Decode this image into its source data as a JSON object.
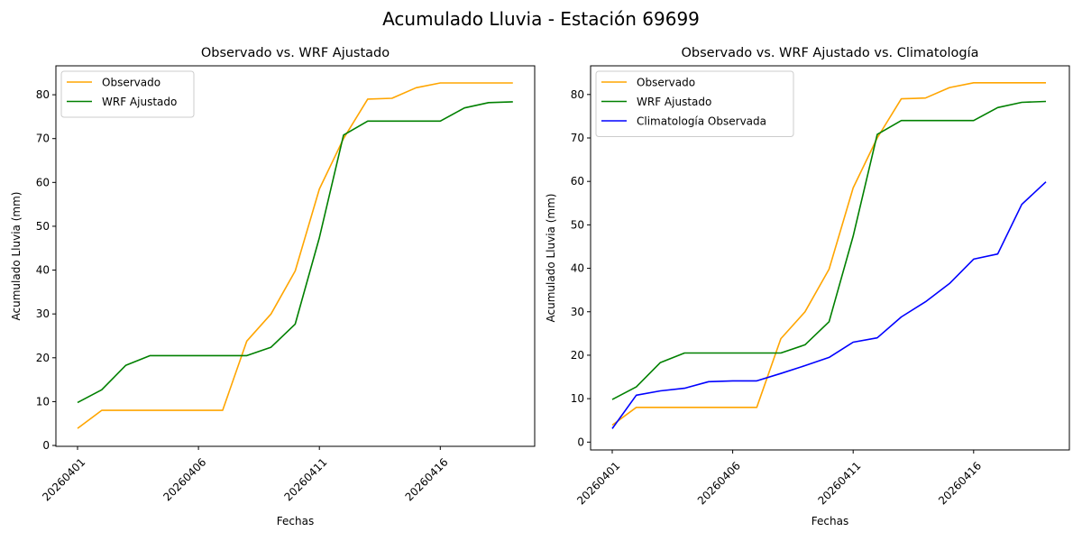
{
  "figure_title": "Acumulado Lluvia - Estación 69699",
  "colors": {
    "observado": "#ffa500",
    "wrf": "#008000",
    "climatologia": "#0000ff"
  },
  "chart_data": [
    {
      "type": "line",
      "title": "Observado vs. WRF Ajustado",
      "xlabel": "Fechas",
      "ylabel": "Acumulado Lluvia (mm)",
      "x": [
        "20260401",
        "20260402",
        "20260403",
        "20260404",
        "20260405",
        "20260406",
        "20260407",
        "20260408",
        "20260409",
        "20260410",
        "20260411",
        "20260412",
        "20260413",
        "20260414",
        "20260415",
        "20260416",
        "20260417",
        "20260418",
        "20260419"
      ],
      "xticks": [
        "20260401",
        "20260406",
        "20260411",
        "20260416"
      ],
      "yticks": [
        0,
        10,
        20,
        30,
        40,
        50,
        60,
        70,
        80
      ],
      "ylim": [
        -0.2,
        86.6
      ],
      "legend": "top-left",
      "grid": false,
      "series": [
        {
          "name": "Observado",
          "color": "#ffa500",
          "values": [
            3.9,
            8.0,
            8.0,
            8.0,
            8.0,
            8.0,
            8.0,
            23.8,
            30.0,
            39.8,
            58.5,
            70.0,
            79.0,
            79.2,
            81.6,
            82.7,
            82.7,
            82.7,
            82.7
          ]
        },
        {
          "name": "WRF Ajustado",
          "color": "#008000",
          "values": [
            9.8,
            12.7,
            18.3,
            20.5,
            20.5,
            20.5,
            20.5,
            20.5,
            22.4,
            27.7,
            47.4,
            70.8,
            74.0,
            74.0,
            74.0,
            74.0,
            77.0,
            78.2,
            78.4
          ]
        }
      ]
    },
    {
      "type": "line",
      "title": "Observado vs. WRF Ajustado vs. Climatología",
      "xlabel": "Fechas",
      "ylabel": "Acumulado Lluvia (mm)",
      "x": [
        "20260401",
        "20260402",
        "20260403",
        "20260404",
        "20260405",
        "20260406",
        "20260407",
        "20260408",
        "20260409",
        "20260410",
        "20260411",
        "20260412",
        "20260413",
        "20260414",
        "20260415",
        "20260416",
        "20260417",
        "20260418",
        "20260419"
      ],
      "xticks": [
        "20260401",
        "20260406",
        "20260411",
        "20260416"
      ],
      "yticks": [
        0,
        10,
        20,
        30,
        40,
        50,
        60,
        70,
        80
      ],
      "ylim": [
        -1.8,
        86.6
      ],
      "legend": "top-left",
      "grid": false,
      "series": [
        {
          "name": "Observado",
          "color": "#ffa500",
          "values": [
            3.9,
            8.0,
            8.0,
            8.0,
            8.0,
            8.0,
            8.0,
            23.8,
            30.0,
            39.8,
            58.5,
            70.0,
            79.0,
            79.2,
            81.6,
            82.7,
            82.7,
            82.7,
            82.7
          ]
        },
        {
          "name": "WRF Ajustado",
          "color": "#008000",
          "values": [
            9.8,
            12.7,
            18.3,
            20.5,
            20.5,
            20.5,
            20.5,
            20.5,
            22.4,
            27.7,
            47.4,
            70.8,
            74.0,
            74.0,
            74.0,
            74.0,
            77.0,
            78.2,
            78.4
          ]
        },
        {
          "name": "Climatología Observada",
          "color": "#0000ff",
          "values": [
            3.1,
            10.8,
            11.8,
            12.4,
            13.9,
            14.1,
            14.1,
            15.8,
            17.6,
            19.5,
            23.0,
            24.0,
            28.8,
            32.3,
            36.5,
            42.1,
            43.3,
            54.7,
            59.9
          ]
        }
      ]
    }
  ]
}
